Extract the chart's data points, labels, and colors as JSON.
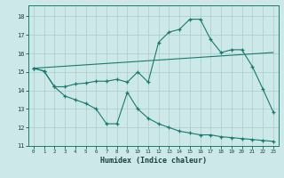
{
  "title": "",
  "xlabel": "Humidex (Indice chaleur)",
  "background_color": "#cce8e8",
  "grid_color": "#aacccc",
  "line_color": "#1a7a6e",
  "xlim": [
    -0.5,
    23.5
  ],
  "ylim": [
    11,
    18.6
  ],
  "yticks": [
    11,
    12,
    13,
    14,
    15,
    16,
    17,
    18
  ],
  "xticks": [
    0,
    1,
    2,
    3,
    4,
    5,
    6,
    7,
    8,
    9,
    10,
    11,
    12,
    13,
    14,
    15,
    16,
    17,
    18,
    19,
    20,
    21,
    22,
    23
  ],
  "line1_x": [
    0,
    1,
    2,
    3,
    4,
    5,
    6,
    7,
    8,
    9,
    10,
    11,
    12,
    13,
    14,
    15,
    16,
    17,
    18,
    19,
    20,
    21,
    22,
    23
  ],
  "line1_y": [
    15.2,
    15.05,
    14.2,
    14.2,
    14.35,
    14.4,
    14.5,
    14.5,
    14.6,
    14.45,
    15.0,
    14.45,
    16.6,
    17.15,
    17.3,
    17.85,
    17.85,
    16.75,
    16.05,
    16.2,
    16.2,
    15.3,
    14.1,
    12.85
  ],
  "line2_x": [
    0,
    1,
    2,
    3,
    4,
    5,
    6,
    7,
    8,
    9,
    10,
    11,
    12,
    13,
    14,
    15,
    16,
    17,
    18,
    19,
    20,
    21,
    22,
    23
  ],
  "line2_y": [
    15.2,
    15.05,
    14.2,
    13.7,
    13.5,
    13.3,
    13.0,
    12.2,
    12.2,
    13.9,
    13.0,
    12.5,
    12.2,
    12.0,
    11.8,
    11.7,
    11.6,
    11.6,
    11.5,
    11.45,
    11.4,
    11.35,
    11.3,
    11.25
  ],
  "line3_x": [
    0,
    23
  ],
  "line3_y": [
    15.2,
    16.05
  ]
}
